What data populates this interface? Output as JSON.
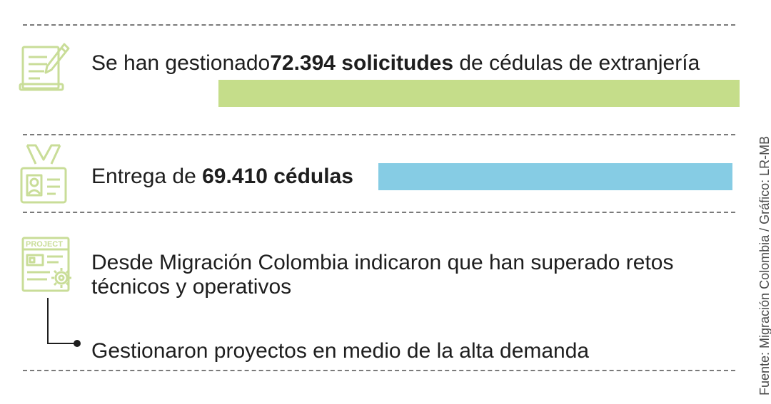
{
  "items": [
    {
      "pre": "Se han gestionado",
      "bold": "72.394 solicitudes",
      "post": " de cédulas de extranjería",
      "value": 72394,
      "bar_color": "#c5dd8a"
    },
    {
      "pre": "Entrega de ",
      "bold": "69.410 cédulas",
      "post": "",
      "value": 69410,
      "bar_color": "#86cce4"
    }
  ],
  "project": {
    "icon_label": "PROJECT",
    "line1": "Desde Migración Colombia indicaron que han superado retos",
    "line2": "técnicos y operativos",
    "sub": "Gestionaron proyectos en medio de la alta demanda"
  },
  "credit": "Fuente: Migración Colombia / Gráfico: LR-MB",
  "icons": [
    "document-pencil-icon",
    "id-badge-icon",
    "project-gear-icon"
  ],
  "colors": {
    "accent_green": "#c5dd8a",
    "accent_blue": "#86cce4",
    "icon_stroke": "#c9dd98"
  }
}
